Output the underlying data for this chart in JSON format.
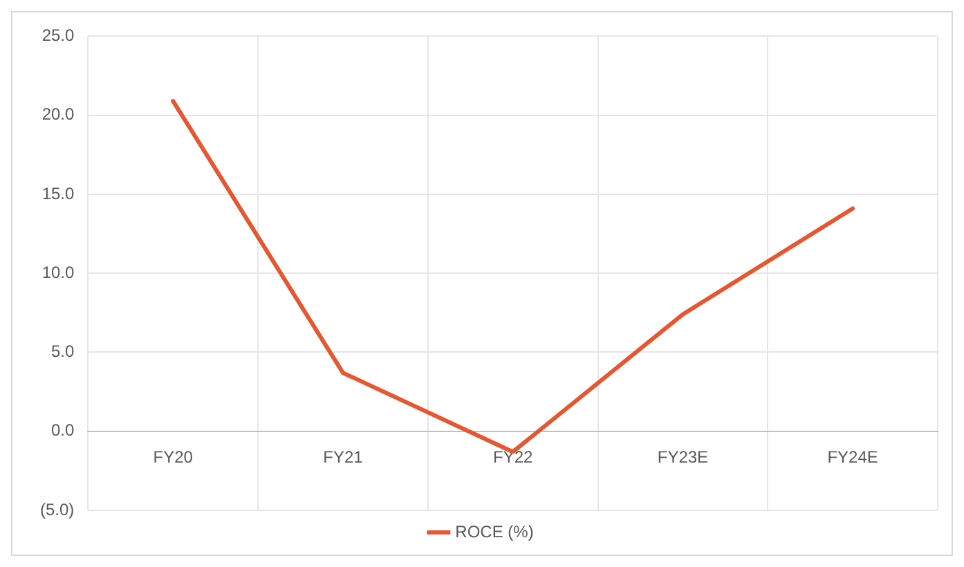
{
  "chart_data": {
    "type": "line",
    "categories": [
      "FY20",
      "FY21",
      "FY22",
      "FY23E",
      "FY24E"
    ],
    "series": [
      {
        "name": "ROCE (%)",
        "color": "#e8552f",
        "values": [
          20.9,
          3.7,
          -1.3,
          7.4,
          14.1
        ]
      }
    ],
    "ylim": [
      -5,
      25
    ],
    "yticks": [
      {
        "value": -5,
        "label": "(5.0)"
      },
      {
        "value": 0,
        "label": "0.0"
      },
      {
        "value": 5,
        "label": "5.0"
      },
      {
        "value": 10,
        "label": "10.0"
      },
      {
        "value": 15,
        "label": "15.0"
      },
      {
        "value": 20,
        "label": "20.0"
      },
      {
        "value": 25,
        "label": "25.0"
      }
    ],
    "grid": true,
    "legend": "bottom",
    "marker": "none",
    "line_style": "solid"
  }
}
